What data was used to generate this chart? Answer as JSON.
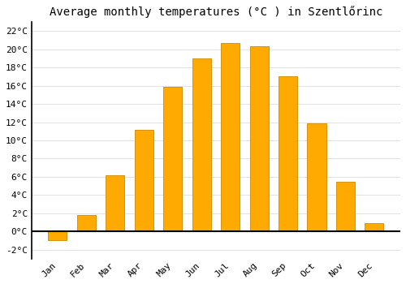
{
  "title": "Average monthly temperatures (°C ) in Szentlőrinc",
  "months": [
    "Jan",
    "Feb",
    "Mar",
    "Apr",
    "May",
    "Jun",
    "Jul",
    "Aug",
    "Sep",
    "Oct",
    "Nov",
    "Dec"
  ],
  "values": [
    -1.0,
    1.8,
    6.2,
    11.2,
    15.9,
    19.0,
    20.7,
    20.3,
    17.0,
    11.9,
    5.5,
    0.9
  ],
  "bar_color": "#FFAA00",
  "bar_edge_color": "#CC8800",
  "background_color": "#FFFFFF",
  "plot_bg_color": "#FFFFFF",
  "grid_color": "#DDDDDD",
  "ylim": [
    -3,
    23
  ],
  "yticks": [
    -2,
    0,
    2,
    4,
    6,
    8,
    10,
    12,
    14,
    16,
    18,
    20,
    22
  ],
  "title_fontsize": 10,
  "tick_fontsize": 8,
  "font_family": "monospace"
}
